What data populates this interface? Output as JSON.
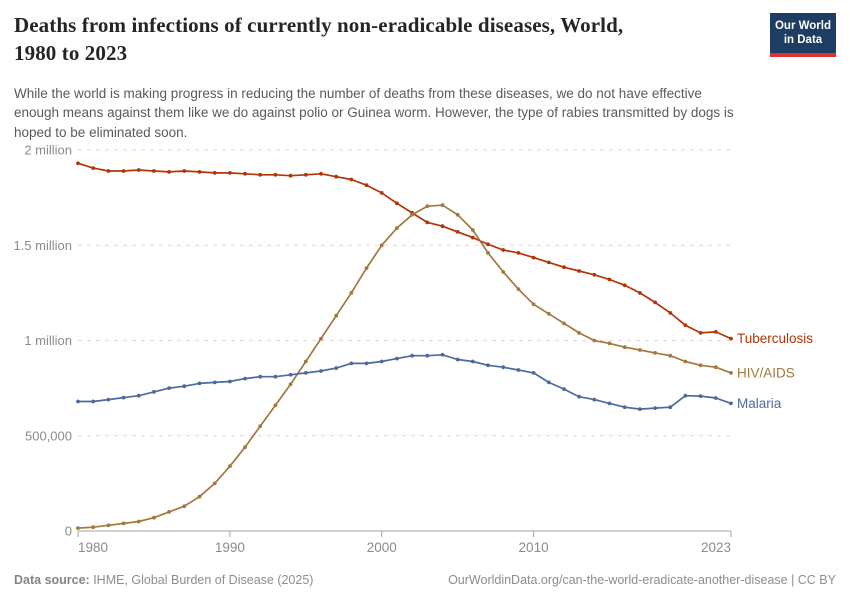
{
  "header": {
    "title_lines": [
      "Deaths from infections of currently non-eradicable diseases, World,",
      "1980 to 2023"
    ],
    "subtitle_lines": [
      "While the world is making progress in reducing the number of deaths from these diseases, we do not have effective",
      "enough means against them like we do against polio or Guinea worm. However, the type of rabies transmitted by dogs is",
      "hoped to be eliminated soon."
    ]
  },
  "logo": {
    "line1": "Our World",
    "line2": "in Data",
    "bg_color": "#1d3d63",
    "accent_color": "#d8352e"
  },
  "footer": {
    "source_label": "Data source:",
    "source_text": " IHME, Global Burden of Disease (2025)",
    "citation": "OurWorldinData.org/can-the-world-eradicate-another-disease | CC BY"
  },
  "chart_data": {
    "type": "line",
    "title": "Deaths from infections of currently non-eradicable diseases, World, 1980 to 2023",
    "xlabel": "",
    "ylabel": "",
    "xlim": [
      1980,
      2023
    ],
    "ylim": [
      0,
      2000000
    ],
    "grid": "horizontal-dashed",
    "legend_position": "line-end-labels-right",
    "marker": "dot",
    "axis_text_color": "#8b8b8b",
    "gridline_color": "#dadada",
    "axis_line_color": "#a3a3a3",
    "x": [
      1980,
      1981,
      1982,
      1983,
      1984,
      1985,
      1986,
      1987,
      1988,
      1989,
      1990,
      1991,
      1992,
      1993,
      1994,
      1995,
      1996,
      1997,
      1998,
      1999,
      2000,
      2001,
      2002,
      2003,
      2004,
      2005,
      2006,
      2007,
      2008,
      2009,
      2010,
      2011,
      2012,
      2013,
      2014,
      2015,
      2016,
      2017,
      2018,
      2019,
      2020,
      2021,
      2022,
      2023
    ],
    "xticks": [
      {
        "v": 1980,
        "label": "1980",
        "align": "start"
      },
      {
        "v": 1990,
        "label": "1990",
        "align": "middle"
      },
      {
        "v": 2000,
        "label": "2000",
        "align": "middle"
      },
      {
        "v": 2010,
        "label": "2010",
        "align": "middle"
      },
      {
        "v": 2023,
        "label": "2023",
        "align": "end"
      }
    ],
    "yticks": [
      {
        "v": 0,
        "label": "0"
      },
      {
        "v": 500000,
        "label": "500,000"
      },
      {
        "v": 1000000,
        "label": "1 million"
      },
      {
        "v": 1500000,
        "label": "1.5 million"
      },
      {
        "v": 2000000,
        "label": "2 million"
      }
    ],
    "series": [
      {
        "name": "Tuberculosis",
        "color": "#B13507",
        "values": [
          1930000,
          1905000,
          1890000,
          1890000,
          1895000,
          1890000,
          1885000,
          1890000,
          1885000,
          1880000,
          1880000,
          1875000,
          1870000,
          1870000,
          1865000,
          1870000,
          1875000,
          1860000,
          1845000,
          1815000,
          1775000,
          1720000,
          1670000,
          1620000,
          1600000,
          1570000,
          1540000,
          1505000,
          1475000,
          1460000,
          1435000,
          1410000,
          1385000,
          1365000,
          1345000,
          1320000,
          1290000,
          1250000,
          1200000,
          1145000,
          1080000,
          1040000,
          1045000,
          1010000
        ]
      },
      {
        "name": "HIV/AIDS",
        "color": "#A2793D",
        "values": [
          15000,
          20000,
          30000,
          40000,
          50000,
          70000,
          100000,
          130000,
          180000,
          250000,
          340000,
          440000,
          550000,
          660000,
          770000,
          890000,
          1010000,
          1130000,
          1250000,
          1380000,
          1500000,
          1590000,
          1660000,
          1705000,
          1710000,
          1660000,
          1580000,
          1460000,
          1360000,
          1270000,
          1190000,
          1140000,
          1090000,
          1040000,
          1000000,
          985000,
          965000,
          950000,
          935000,
          920000,
          890000,
          870000,
          860000,
          830000
        ]
      },
      {
        "name": "Malaria",
        "color": "#4C6A9C",
        "values": [
          680000,
          680000,
          690000,
          700000,
          710000,
          730000,
          750000,
          760000,
          775000,
          780000,
          785000,
          800000,
          810000,
          810000,
          820000,
          830000,
          840000,
          855000,
          880000,
          880000,
          890000,
          905000,
          920000,
          920000,
          925000,
          900000,
          890000,
          870000,
          860000,
          845000,
          830000,
          780000,
          745000,
          705000,
          690000,
          670000,
          650000,
          640000,
          645000,
          650000,
          710000,
          708000,
          698000,
          670000
        ]
      }
    ]
  }
}
